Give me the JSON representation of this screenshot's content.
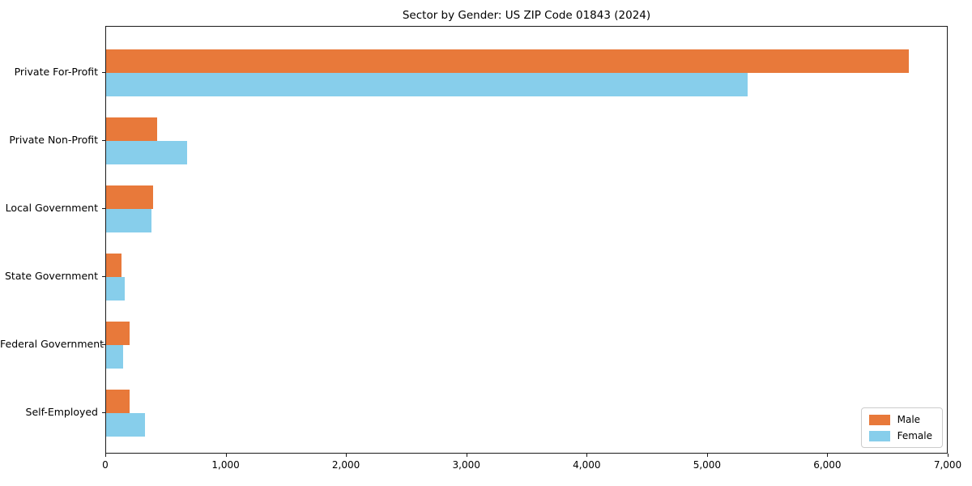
{
  "chart_data": {
    "type": "bar",
    "orientation": "horizontal",
    "title": "Sector by Gender: US ZIP Code 01843 (2024)",
    "categories": [
      "Private For-Profit",
      "Private Non-Profit",
      "Local Government",
      "State Government",
      "Federal Government",
      "Self-Employed"
    ],
    "series": [
      {
        "name": "Male",
        "color": "#E8793A",
        "values": [
          6670,
          425,
          390,
          130,
          195,
          195
        ]
      },
      {
        "name": "Female",
        "color": "#87CEEB",
        "values": [
          5330,
          670,
          375,
          155,
          140,
          320
        ]
      }
    ],
    "xlim": [
      0,
      7000
    ],
    "xticks": [
      0,
      1000,
      2000,
      3000,
      4000,
      5000,
      6000,
      7000
    ],
    "xtick_labels": [
      "0",
      "1,000",
      "2,000",
      "3,000",
      "4,000",
      "5,000",
      "6,000",
      "7,000"
    ],
    "xlabel": "",
    "ylabel": "",
    "grid": false,
    "legend": {
      "position": "lower-right",
      "entries": [
        "Male",
        "Female"
      ]
    },
    "colors": {
      "spine": "#1a1a1a",
      "background": "#ffffff",
      "text": "#000000"
    }
  }
}
